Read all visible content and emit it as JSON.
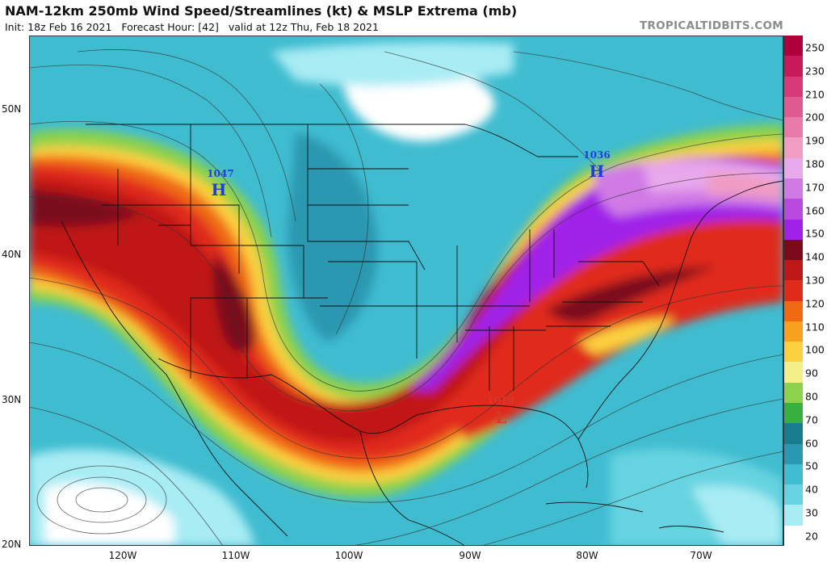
{
  "header": {
    "title": "NAM-12km 250mb Wind Speed/Streamlines (kt) & MSLP Extrema (mb)",
    "init": "Init: 18z Feb 16 2021",
    "forecast_hour": "Forecast Hour: [42]",
    "valid": "valid at 12z Thu, Feb 18 2021",
    "brand": "TROPICALTIDBITS.COM"
  },
  "axes": {
    "lat_labels": [
      "50N",
      "40N",
      "30N",
      "20N"
    ],
    "lon_labels": [
      "120W",
      "110W",
      "100W",
      "90W",
      "80W",
      "70W"
    ]
  },
  "pressure_centers": [
    {
      "type": "H",
      "value": "1047",
      "color": "#1f3fd8"
    },
    {
      "type": "H",
      "value": "1036",
      "color": "#1f3fd8"
    },
    {
      "type": "L",
      "value": "1010",
      "color": "#d43a2a"
    }
  ],
  "colorbar": {
    "labels": [
      "250",
      "230",
      "210",
      "200",
      "190",
      "180",
      "170",
      "160",
      "150",
      "140",
      "130",
      "120",
      "110",
      "100",
      "90",
      "80",
      "70",
      "60",
      "50",
      "40",
      "30",
      "20"
    ],
    "colors": [
      "#b0003c",
      "#c81a5a",
      "#d83a78",
      "#e05a92",
      "#e97bab",
      "#f09cc3",
      "#e8a8ec",
      "#d07ae6",
      "#b84ae0",
      "#a020e8",
      "#7a0a1a",
      "#c01818",
      "#e02a1a",
      "#f06a14",
      "#f8a020",
      "#fbd040",
      "#f4f088",
      "#8cd24c",
      "#38b040",
      "#187c8c",
      "#2a98b0",
      "#40bcd0",
      "#66d4e0",
      "#a8ecf4",
      "#ffffff"
    ]
  }
}
